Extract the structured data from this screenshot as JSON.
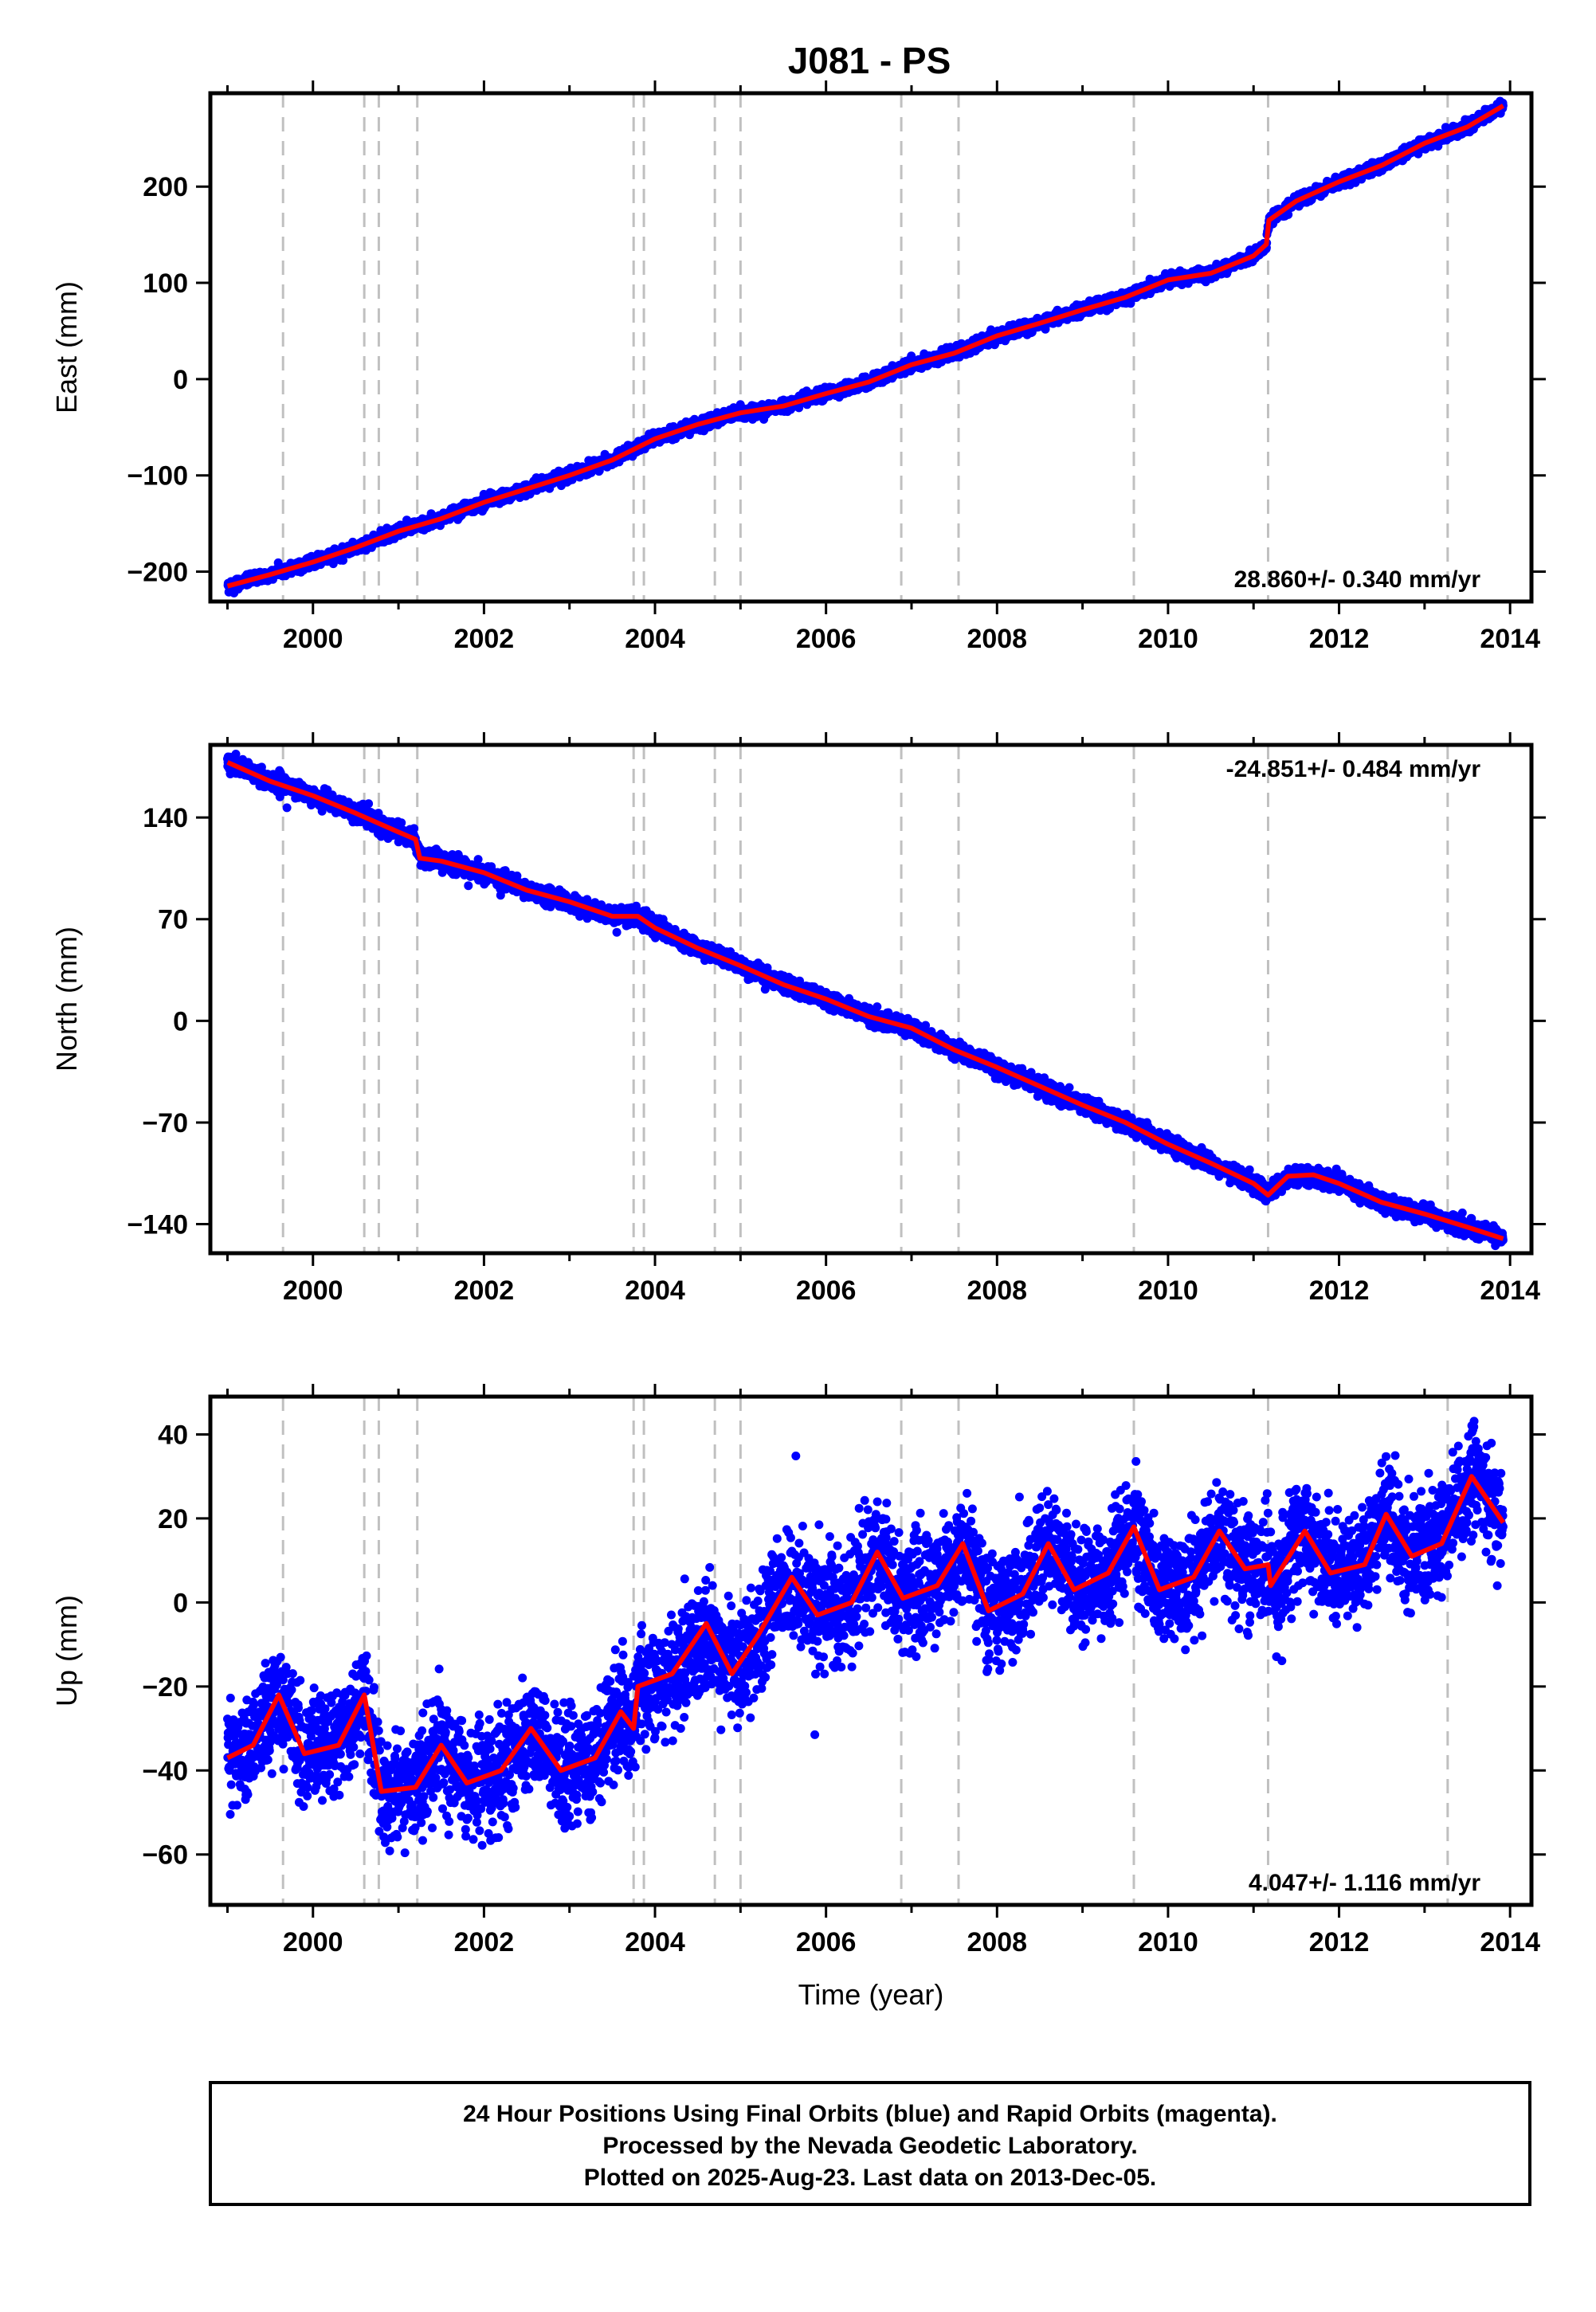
{
  "title": "J081 - PS",
  "footer": {
    "lines": [
      "24 Hour Positions Using Final Orbits (blue) and Rapid Orbits (magenta).",
      "Processed by the Nevada Geodetic Laboratory.",
      "Plotted on 2025-Aug-23. Last data on 2013-Dec-05."
    ]
  },
  "colors": {
    "points": "#0000ff",
    "model": "#ff0000",
    "event_lines": "#c0c0c0",
    "frame": "#000000"
  },
  "chart_data": [
    {
      "type": "scatter",
      "component": "east",
      "ylabel": "East (mm)",
      "xlim": [
        1998.8,
        2014.25
      ],
      "ylim": [
        -231,
        297
      ],
      "xticks": [
        2000,
        2002,
        2004,
        2006,
        2008,
        2010,
        2012,
        2014
      ],
      "yticks": [
        -200,
        -100,
        0,
        100,
        200
      ],
      "rate_label": "28.860+/- 0.340 mm/yr",
      "rate_position": "bottom-right",
      "event_lines": [
        1999.65,
        2000.6,
        2000.77,
        2001.22,
        2003.75,
        2003.87,
        2004.7,
        2005.0,
        2006.88,
        2007.55,
        2009.6,
        2011.17,
        2013.27
      ],
      "noise_sd": 3.0,
      "model": [
        [
          1999.0,
          -215
        ],
        [
          1999.5,
          -203
        ],
        [
          2000.0,
          -190
        ],
        [
          2000.5,
          -175
        ],
        [
          2001.0,
          -158
        ],
        [
          2001.5,
          -145
        ],
        [
          2002.0,
          -128
        ],
        [
          2002.5,
          -114
        ],
        [
          2003.0,
          -100
        ],
        [
          2003.5,
          -84
        ],
        [
          2004.0,
          -62
        ],
        [
          2004.5,
          -47
        ],
        [
          2005.0,
          -35
        ],
        [
          2005.5,
          -28
        ],
        [
          2006.0,
          -15
        ],
        [
          2006.5,
          -3
        ],
        [
          2007.0,
          15
        ],
        [
          2007.5,
          27
        ],
        [
          2008.0,
          45
        ],
        [
          2008.5,
          58
        ],
        [
          2009.0,
          72
        ],
        [
          2009.5,
          85
        ],
        [
          2010.0,
          103
        ],
        [
          2010.5,
          110
        ],
        [
          2011.0,
          128
        ],
        [
          2011.15,
          140
        ],
        [
          2011.18,
          165
        ],
        [
          2011.5,
          185
        ],
        [
          2012.0,
          205
        ],
        [
          2012.5,
          222
        ],
        [
          2013.0,
          245
        ],
        [
          2013.5,
          262
        ],
        [
          2013.92,
          284
        ]
      ]
    },
    {
      "type": "scatter",
      "component": "north",
      "ylabel": "North (mm)",
      "xlim": [
        1998.8,
        2014.25
      ],
      "ylim": [
        -160,
        190
      ],
      "xticks": [
        2000,
        2002,
        2004,
        2006,
        2008,
        2010,
        2012,
        2014
      ],
      "yticks": [
        -140,
        -70,
        0,
        70,
        140
      ],
      "rate_label": "-24.851+/- 0.484 mm/yr",
      "rate_position": "top-right",
      "event_lines": [
        1999.65,
        2000.6,
        2000.77,
        2001.22,
        2003.75,
        2003.87,
        2004.7,
        2005.0,
        2006.88,
        2007.55,
        2009.6,
        2011.17,
        2013.27
      ],
      "noise_sd": 3.0,
      "model": [
        [
          1999.0,
          178
        ],
        [
          1999.5,
          165
        ],
        [
          2000.0,
          155
        ],
        [
          2000.5,
          143
        ],
        [
          2001.0,
          130
        ],
        [
          2001.2,
          125
        ],
        [
          2001.25,
          112
        ],
        [
          2001.5,
          110
        ],
        [
          2002.0,
          102
        ],
        [
          2002.5,
          90
        ],
        [
          2003.0,
          82
        ],
        [
          2003.5,
          72
        ],
        [
          2003.8,
          72
        ],
        [
          2004.0,
          64
        ],
        [
          2004.5,
          50
        ],
        [
          2005.0,
          38
        ],
        [
          2005.5,
          25
        ],
        [
          2006.0,
          15
        ],
        [
          2006.5,
          3
        ],
        [
          2007.0,
          -5
        ],
        [
          2007.5,
          -20
        ],
        [
          2008.0,
          -32
        ],
        [
          2008.5,
          -45
        ],
        [
          2009.0,
          -58
        ],
        [
          2009.5,
          -70
        ],
        [
          2010.0,
          -85
        ],
        [
          2010.5,
          -98
        ],
        [
          2011.0,
          -112
        ],
        [
          2011.17,
          -120
        ],
        [
          2011.4,
          -107
        ],
        [
          2011.7,
          -106
        ],
        [
          2012.0,
          -112
        ],
        [
          2012.5,
          -125
        ],
        [
          2013.0,
          -133
        ],
        [
          2013.5,
          -142
        ],
        [
          2013.92,
          -150
        ]
      ]
    },
    {
      "type": "scatter",
      "component": "up",
      "ylabel": "Up (mm)",
      "xlabel": "Time (year)",
      "xlim": [
        1998.8,
        2014.25
      ],
      "ylim": [
        -72,
        49
      ],
      "xticks": [
        2000,
        2002,
        2004,
        2006,
        2008,
        2010,
        2012,
        2014
      ],
      "yticks": [
        -60,
        -40,
        -20,
        0,
        20,
        40
      ],
      "rate_label": "4.047+/- 1.116 mm/yr",
      "rate_position": "bottom-right",
      "event_lines": [
        1999.65,
        2000.6,
        2000.77,
        2001.22,
        2003.75,
        2003.87,
        2004.7,
        2005.0,
        2006.88,
        2007.55,
        2009.6,
        2011.17,
        2013.27
      ],
      "noise_sd": 6.5,
      "model": [
        [
          1999.0,
          -37
        ],
        [
          1999.3,
          -34
        ],
        [
          1999.6,
          -22
        ],
        [
          1999.9,
          -36
        ],
        [
          2000.3,
          -34
        ],
        [
          2000.6,
          -22
        ],
        [
          2000.8,
          -45
        ],
        [
          2001.2,
          -44
        ],
        [
          2001.5,
          -34
        ],
        [
          2001.8,
          -43
        ],
        [
          2002.2,
          -40
        ],
        [
          2002.55,
          -30
        ],
        [
          2002.9,
          -40
        ],
        [
          2003.3,
          -37
        ],
        [
          2003.6,
          -26
        ],
        [
          2003.75,
          -30
        ],
        [
          2003.8,
          -20
        ],
        [
          2004.2,
          -17
        ],
        [
          2004.6,
          -5
        ],
        [
          2004.9,
          -17
        ],
        [
          2005.2,
          -8
        ],
        [
          2005.6,
          6
        ],
        [
          2005.9,
          -3
        ],
        [
          2006.3,
          0
        ],
        [
          2006.6,
          12
        ],
        [
          2006.9,
          1
        ],
        [
          2007.3,
          4
        ],
        [
          2007.6,
          14
        ],
        [
          2007.9,
          -2
        ],
        [
          2008.3,
          2
        ],
        [
          2008.6,
          14
        ],
        [
          2008.9,
          3
        ],
        [
          2009.3,
          7
        ],
        [
          2009.6,
          18
        ],
        [
          2009.9,
          3
        ],
        [
          2010.3,
          6
        ],
        [
          2010.6,
          17
        ],
        [
          2010.9,
          8
        ],
        [
          2011.17,
          9
        ],
        [
          2011.2,
          4
        ],
        [
          2011.6,
          17
        ],
        [
          2011.9,
          7
        ],
        [
          2012.3,
          9
        ],
        [
          2012.55,
          21
        ],
        [
          2012.85,
          11
        ],
        [
          2013.2,
          14
        ],
        [
          2013.55,
          30
        ],
        [
          2013.92,
          19
        ]
      ]
    }
  ]
}
